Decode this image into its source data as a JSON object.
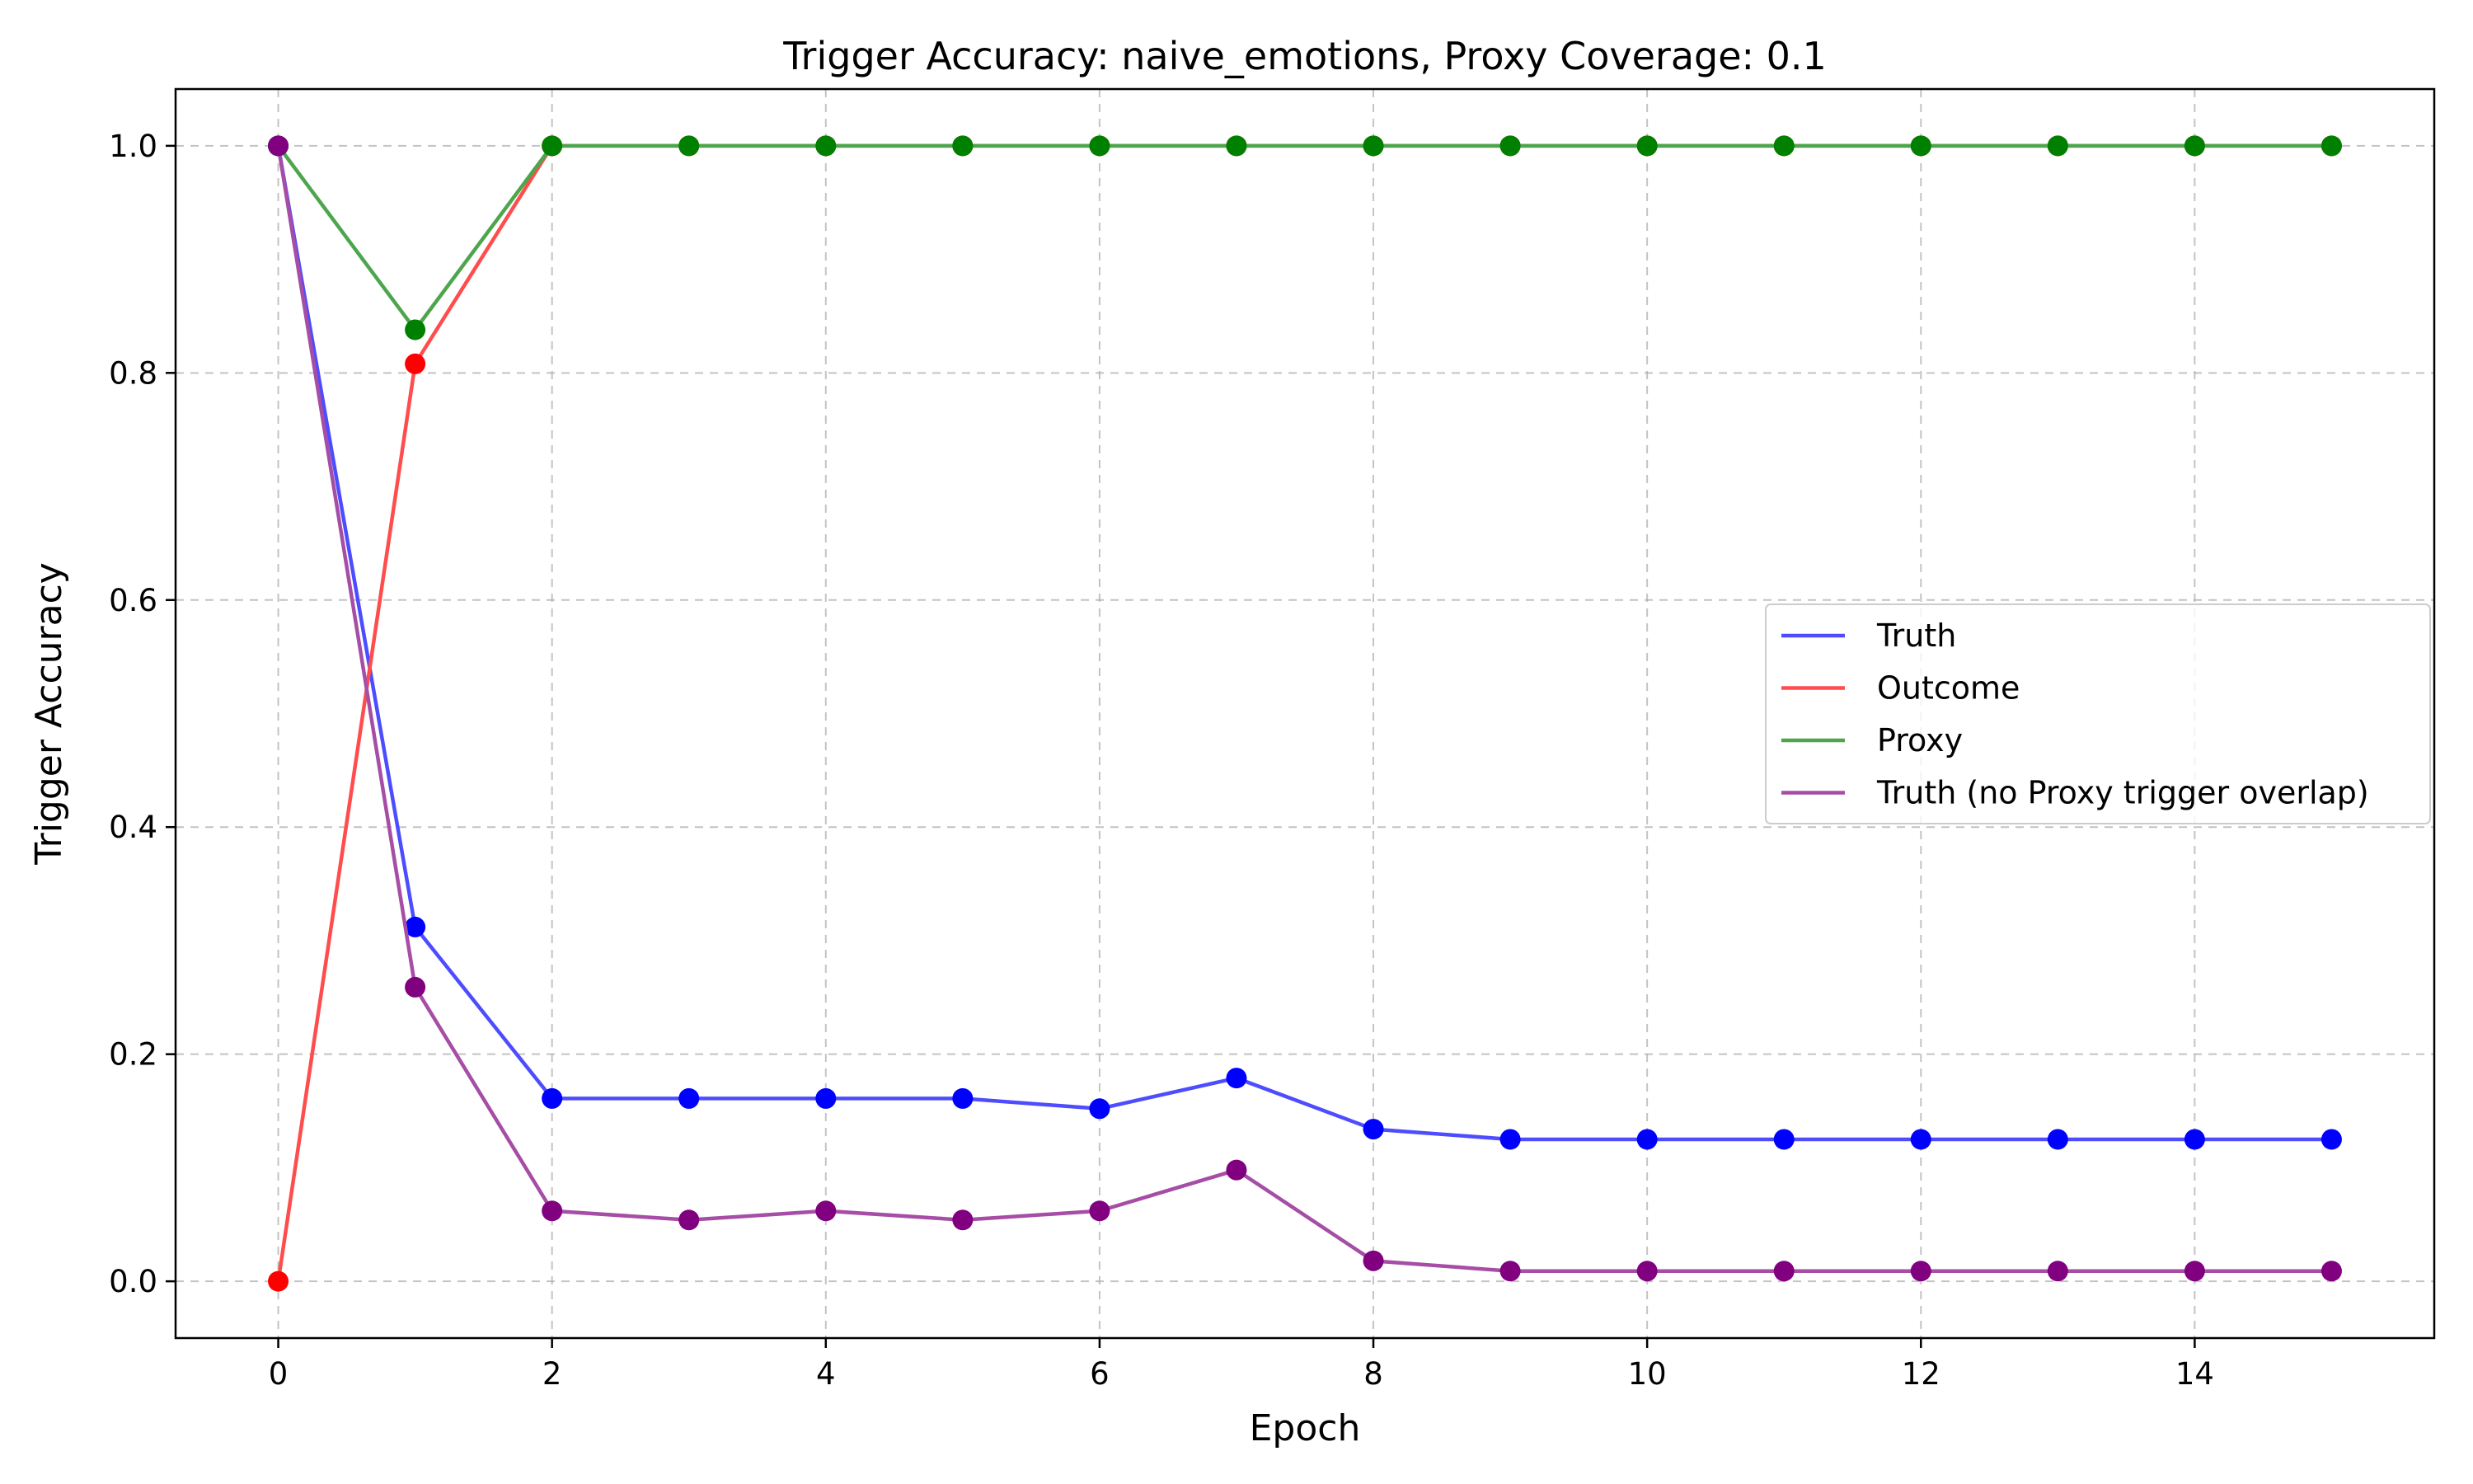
{
  "chart_data": {
    "type": "line",
    "title": "Trigger Accuracy: naive_emotions, Proxy Coverage: 0.1",
    "xlabel": "Epoch",
    "ylabel": "Trigger Accuracy",
    "xlim": [
      -0.75,
      15.75
    ],
    "ylim": [
      -0.05,
      1.05
    ],
    "xticks": [
      0,
      2,
      4,
      6,
      8,
      10,
      12,
      14
    ],
    "yticks": [
      0.0,
      0.2,
      0.4,
      0.6,
      0.8,
      1.0
    ],
    "xtick_labels": [
      "0",
      "2",
      "4",
      "6",
      "8",
      "10",
      "12",
      "14"
    ],
    "ytick_labels": [
      "0.0",
      "0.2",
      "0.4",
      "0.6",
      "0.8",
      "1.0"
    ],
    "grid": true,
    "legend_position": "center-right",
    "x": [
      0,
      1,
      2,
      3,
      4,
      5,
      6,
      7,
      8,
      9,
      10,
      11,
      12,
      13,
      14,
      15
    ],
    "series": [
      {
        "name": "Truth",
        "line_color": "#4d4dff",
        "marker_color": "#0000ff",
        "values": [
          1.0,
          0.312,
          0.161,
          0.161,
          0.161,
          0.161,
          0.152,
          0.179,
          0.134,
          0.125,
          0.125,
          0.125,
          0.125,
          0.125,
          0.125,
          0.125
        ]
      },
      {
        "name": "Outcome",
        "line_color": "#ff4d4d",
        "marker_color": "#ff0000",
        "values": [
          0.0,
          0.808,
          1.0,
          1.0,
          1.0,
          1.0,
          1.0,
          1.0,
          1.0,
          1.0,
          1.0,
          1.0,
          1.0,
          1.0,
          1.0,
          1.0
        ]
      },
      {
        "name": "Proxy",
        "line_color": "#4da64d",
        "marker_color": "#008000",
        "values": [
          1.0,
          0.838,
          1.0,
          1.0,
          1.0,
          1.0,
          1.0,
          1.0,
          1.0,
          1.0,
          1.0,
          1.0,
          1.0,
          1.0,
          1.0,
          1.0
        ]
      },
      {
        "name": "Truth (no Proxy trigger overlap)",
        "line_color": "#a64da6",
        "marker_color": "#800080",
        "values": [
          1.0,
          0.259,
          0.062,
          0.054,
          0.062,
          0.054,
          0.062,
          0.098,
          0.018,
          0.009,
          0.009,
          0.009,
          0.009,
          0.009,
          0.009,
          0.009
        ]
      }
    ]
  }
}
